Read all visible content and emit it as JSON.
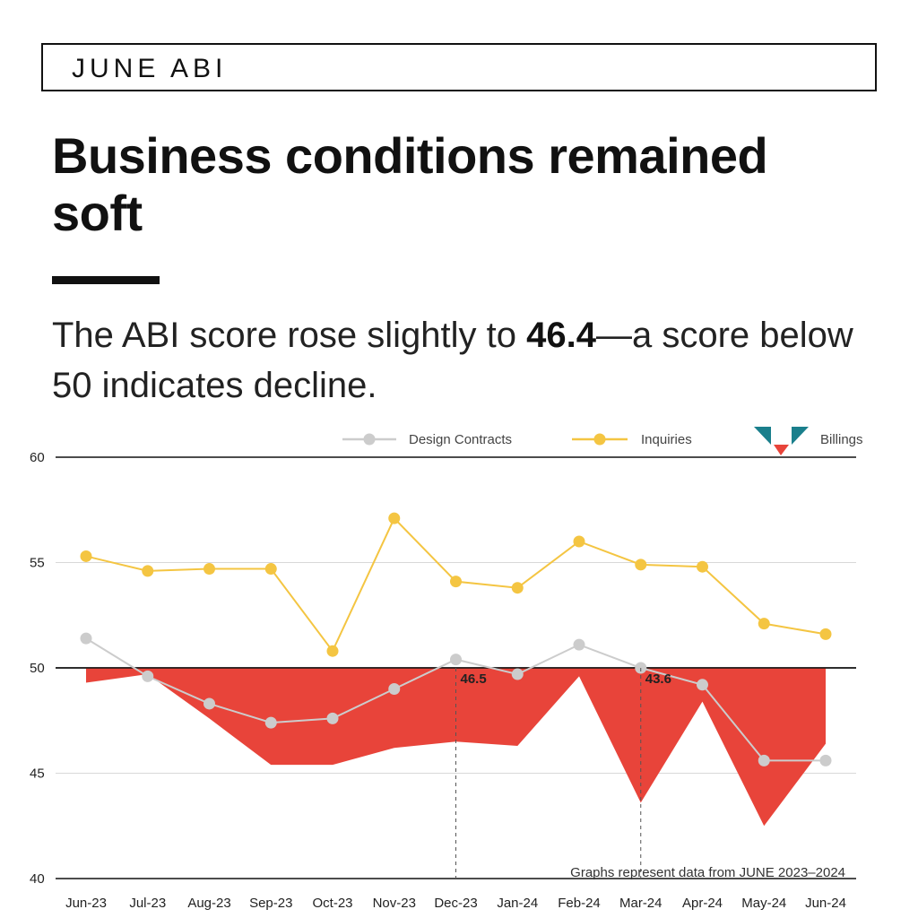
{
  "header": {
    "tag": "JUNE ABI"
  },
  "headline": "Business conditions remained soft",
  "subhead": {
    "before": "The ABI score rose slightly to ",
    "bold": "46.4",
    "after": "—a score below 50 indicates decline."
  },
  "colors": {
    "billings": "#e8443a",
    "inquiries": "#f4c542",
    "design_contracts": "#cccccc",
    "billings_icon_teal": "#1a7f8c"
  },
  "chart_data": {
    "type": "line",
    "categories": [
      "Jun-23",
      "Jul-23",
      "Aug-23",
      "Sep-23",
      "Oct-23",
      "Nov-23",
      "Dec-23",
      "Jan-24",
      "Feb-24",
      "Mar-24",
      "Apr-24",
      "May-24",
      "Jun-24"
    ],
    "ylim": [
      40,
      60
    ],
    "yticks": [
      60,
      55,
      50,
      45,
      40
    ],
    "baseline": 50,
    "grid": true,
    "legend_position": "top-right",
    "series": [
      {
        "name": "Design Contracts",
        "kind": "line",
        "values": [
          51.4,
          49.6,
          48.3,
          47.4,
          47.6,
          49.0,
          50.4,
          49.7,
          51.1,
          50.0,
          49.2,
          45.6,
          45.6
        ]
      },
      {
        "name": "Inquiries",
        "kind": "line",
        "values": [
          55.3,
          54.6,
          54.7,
          54.7,
          50.8,
          57.1,
          54.1,
          53.8,
          56.0,
          54.9,
          54.8,
          52.1,
          51.6
        ]
      },
      {
        "name": "Billings",
        "kind": "area",
        "values": [
          49.3,
          49.7,
          47.6,
          45.4,
          45.4,
          46.2,
          46.5,
          46.3,
          49.6,
          43.6,
          48.4,
          42.5,
          46.4
        ]
      }
    ],
    "annotations": [
      {
        "category": "Dec-23",
        "label": "46.5"
      },
      {
        "category": "Mar-24",
        "label": "43.6"
      }
    ],
    "footnote": "Graphs represent data from JUNE 2023–2024"
  }
}
